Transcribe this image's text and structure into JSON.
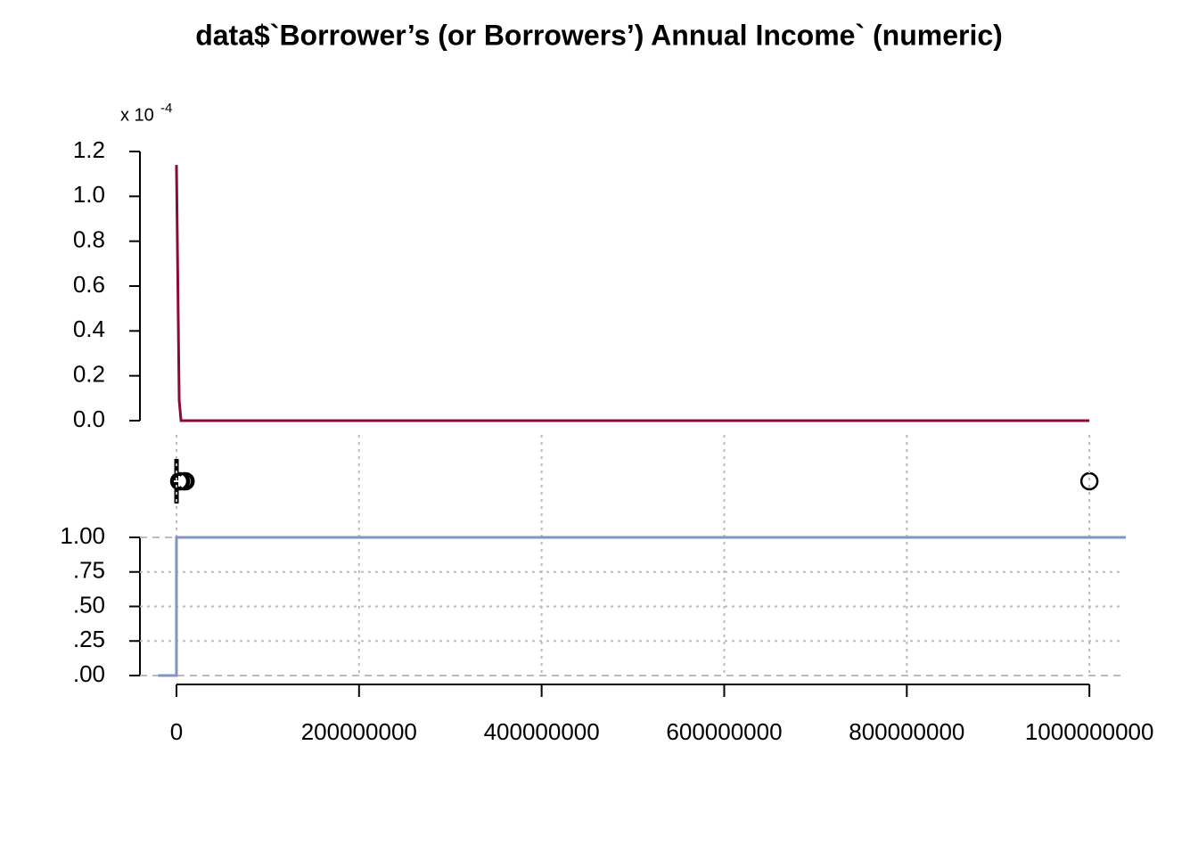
{
  "chart_data": [
    {
      "type": "line",
      "title": "data$`Borrower’s (or Borrowers’) Annual Income` (numeric)",
      "y_multiplier": {
        "base": "x 10",
        "exponent": "-4"
      },
      "x": [
        0,
        3000000,
        5000000,
        1000000000
      ],
      "values": [
        1.14,
        0.09,
        0,
        0
      ],
      "color": "#8b0a3a",
      "ylim": [
        0,
        1.2
      ],
      "yticks": [
        {
          "value": 0,
          "label": "0.0"
        },
        0.2,
        0.4,
        0.6,
        0.8,
        {
          "value": 1,
          "label": "1.0"
        },
        1.2
      ]
    },
    {
      "type": "box",
      "min": 0,
      "q1": 30000,
      "median": 60000,
      "q3": 100000,
      "max": 200000,
      "mean": 3000000,
      "outliers": [
        3000000,
        5000000,
        8000000,
        10000000,
        1000000000
      ],
      "color": "#000000"
    },
    {
      "type": "ecdf",
      "x": [
        -20000000,
        0,
        0,
        1040000000
      ],
      "values": [
        0,
        0,
        1,
        1
      ],
      "color": "#8096c3",
      "ylim": [
        0,
        1
      ],
      "yticks": [
        {
          "value": 0,
          "label": ".00"
        },
        {
          "value": 0.25,
          "label": ".25"
        },
        {
          "value": 0.5,
          "label": ".50"
        },
        {
          "value": 0.75,
          "label": ".75"
        },
        {
          "value": 1,
          "label": "1.00"
        }
      ],
      "xlim": [
        -40000000,
        1035000000
      ],
      "xticks": [
        0,
        200000000,
        400000000,
        600000000,
        800000000,
        1000000000
      ],
      "grid": true
    }
  ]
}
